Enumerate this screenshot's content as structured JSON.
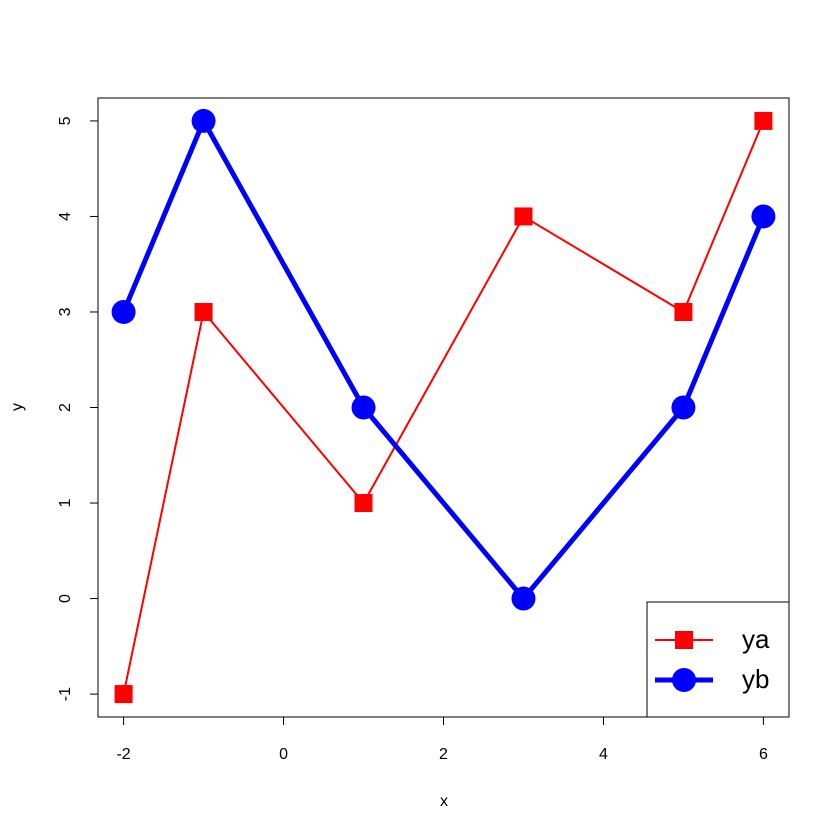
{
  "chart_data": {
    "type": "line",
    "x_label": "x",
    "y_label": "y",
    "x": [
      -2,
      -1,
      1,
      3,
      5,
      6
    ],
    "series": [
      {
        "name": "ya",
        "color": "#ff0000",
        "values": [
          -1,
          3,
          1,
          4,
          3,
          5
        ],
        "marker": "square",
        "line_width": 2
      },
      {
        "name": "yb",
        "color": "#0000ff",
        "values": [
          3,
          5,
          2,
          0,
          2,
          4
        ],
        "marker": "circle",
        "line_width": 5
      }
    ],
    "xlim": [
      -2.32,
      6.32
    ],
    "xticks": [
      -2,
      0,
      2,
      4,
      6
    ],
    "ylim": [
      -1.24,
      5.24
    ],
    "yticks": [
      -1,
      0,
      1,
      2,
      3,
      4,
      5
    ],
    "legend": "bottomright"
  }
}
